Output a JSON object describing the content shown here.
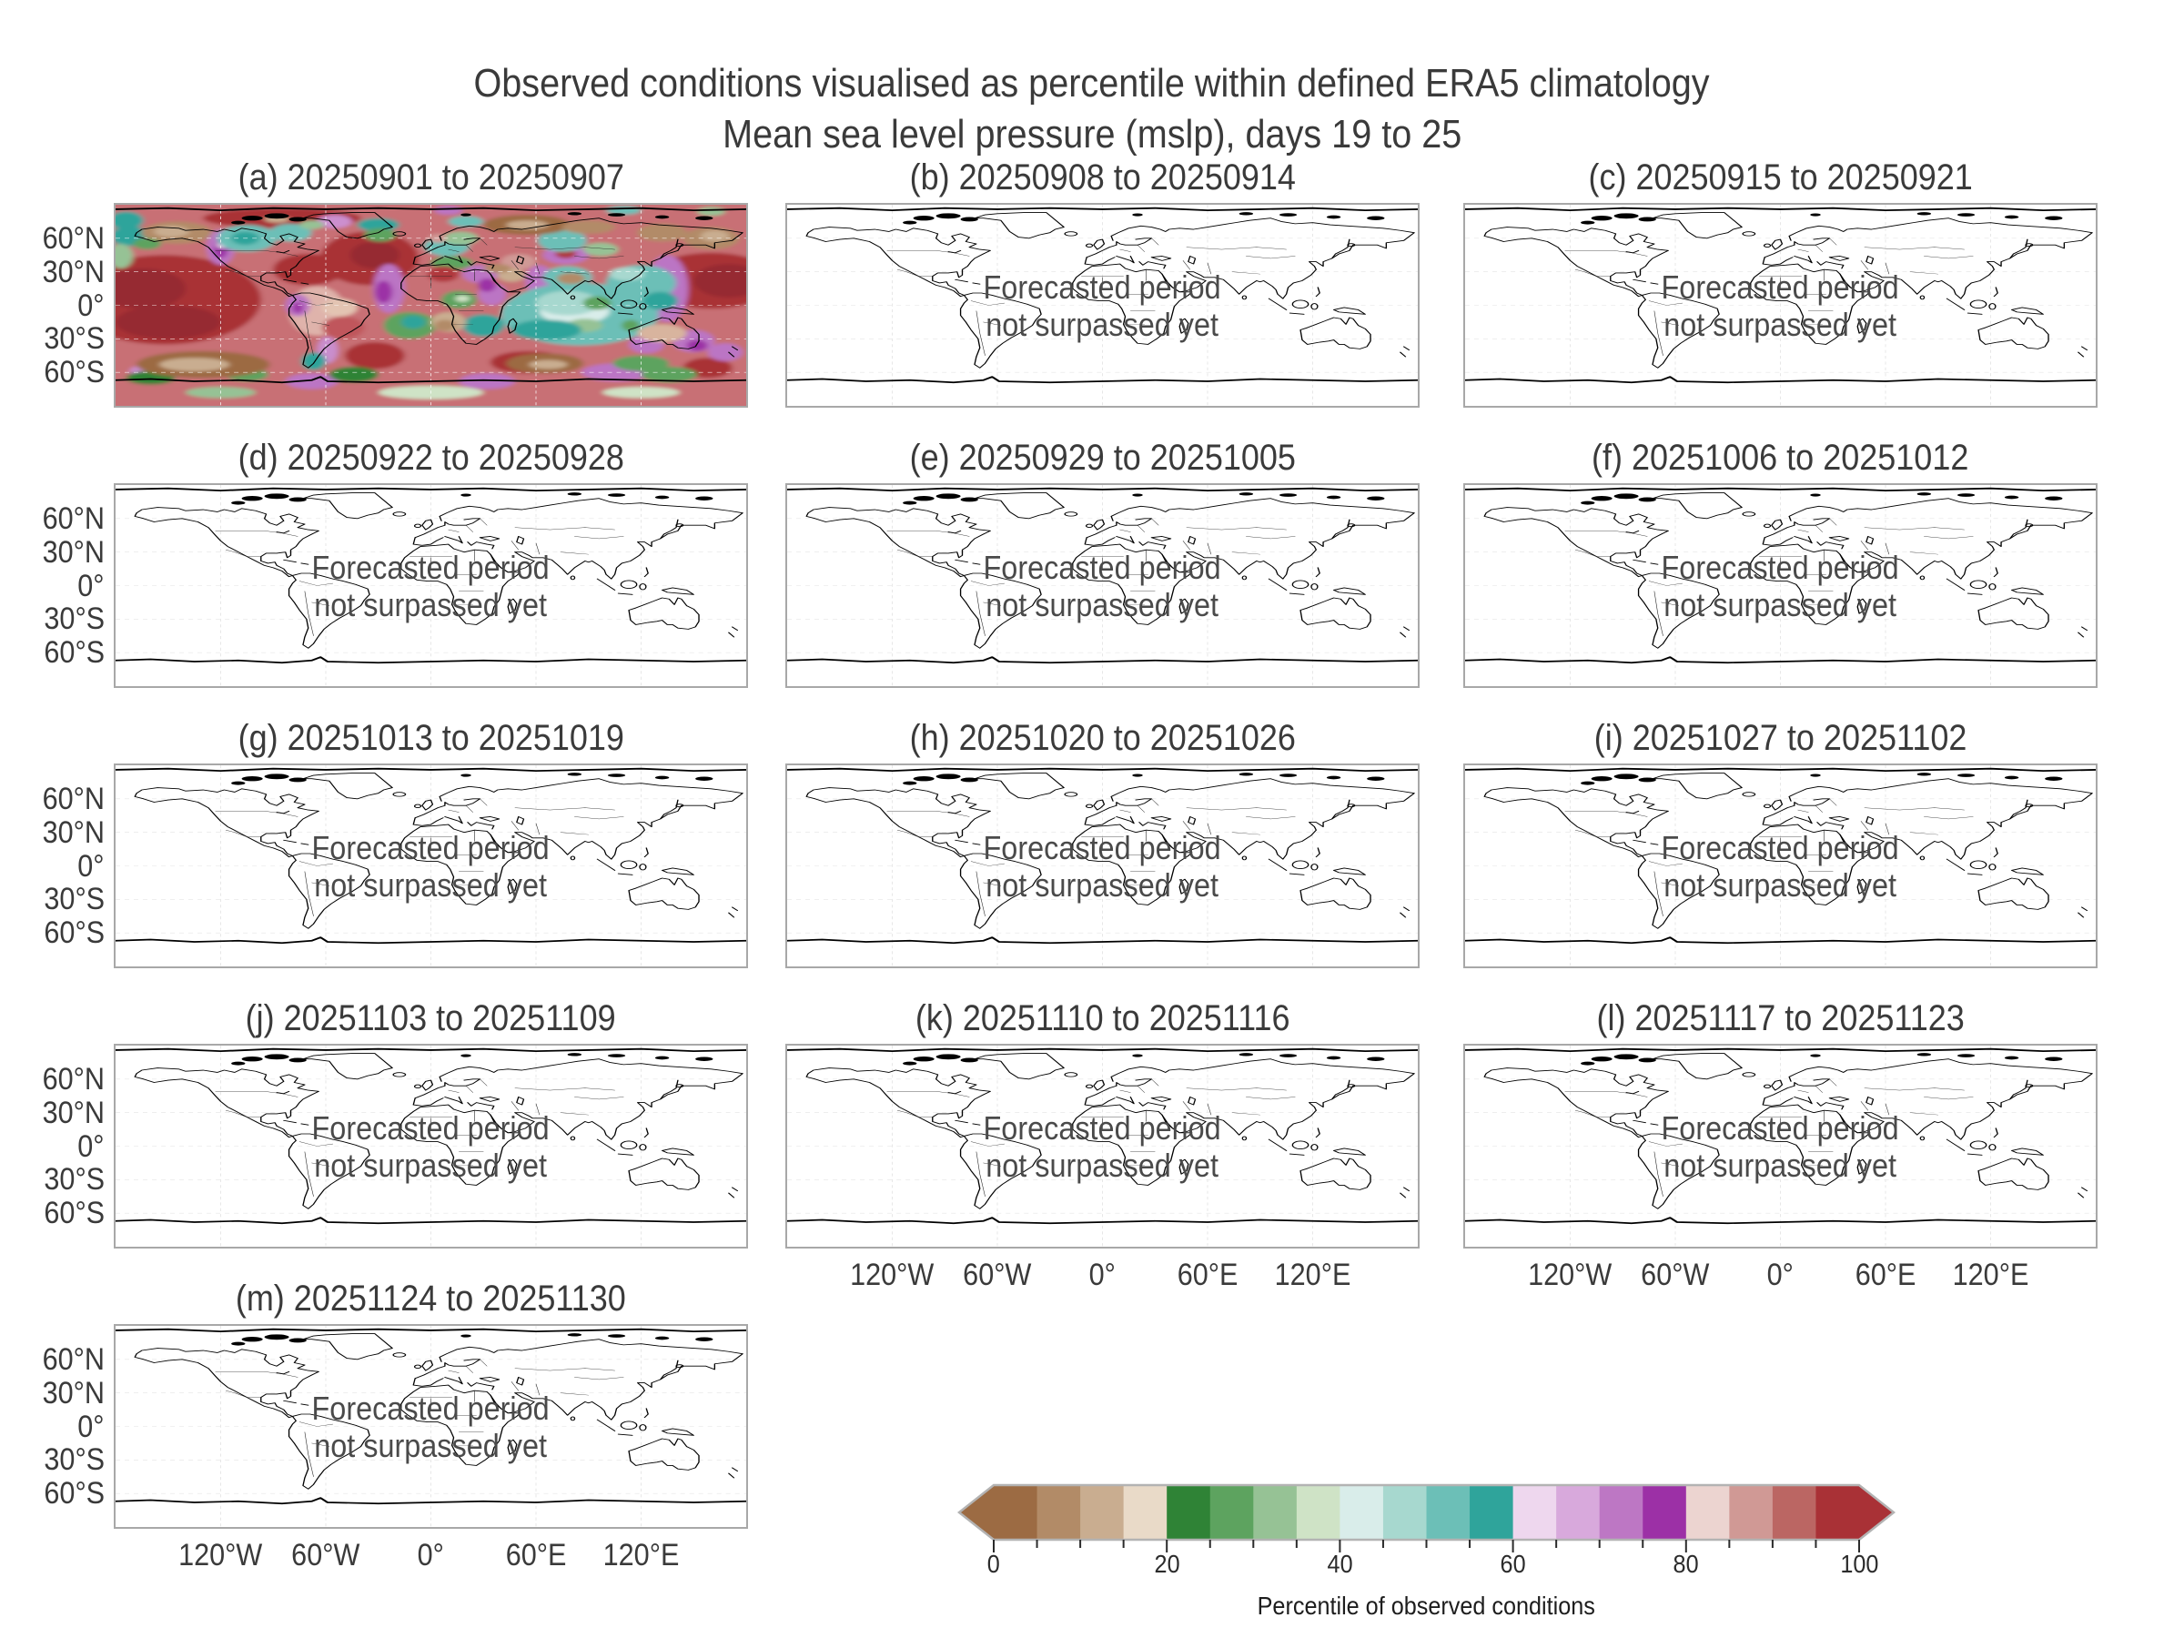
{
  "figure": {
    "title_line1": "Observed conditions visualised as percentile within defined ERA5 climatology",
    "title_line2": "Mean sea level pressure (mslp), days 19 to 25"
  },
  "note": {
    "line1": "Forecasted period",
    "line2": "not surpassed yet"
  },
  "axes": {
    "lat_ticks": [
      "60°N",
      "30°N",
      "0°",
      "30°S",
      "60°S"
    ],
    "lon_ticks": [
      "120°W",
      "60°W",
      "0°",
      "60°E",
      "120°E"
    ]
  },
  "panels": [
    {
      "id": "a",
      "title": "(a) 20250901 to 20250907",
      "type": "observed"
    },
    {
      "id": "b",
      "title": "(b) 20250908 to 20250914",
      "type": "forecast_pending"
    },
    {
      "id": "c",
      "title": "(c) 20250915 to 20250921",
      "type": "forecast_pending"
    },
    {
      "id": "d",
      "title": "(d) 20250922 to 20250928",
      "type": "forecast_pending"
    },
    {
      "id": "e",
      "title": "(e) 20250929 to 20251005",
      "type": "forecast_pending"
    },
    {
      "id": "f",
      "title": "(f) 20251006 to 20251012",
      "type": "forecast_pending"
    },
    {
      "id": "g",
      "title": "(g) 20251013 to 20251019",
      "type": "forecast_pending"
    },
    {
      "id": "h",
      "title": "(h) 20251020 to 20251026",
      "type": "forecast_pending"
    },
    {
      "id": "i",
      "title": "(i) 20251027 to 20251102",
      "type": "forecast_pending"
    },
    {
      "id": "j",
      "title": "(j) 20251103 to 20251109",
      "type": "forecast_pending"
    },
    {
      "id": "k",
      "title": "(k) 20251110 to 20251116",
      "type": "forecast_pending"
    },
    {
      "id": "l",
      "title": "(l) 20251117 to 20251123",
      "type": "forecast_pending"
    },
    {
      "id": "m",
      "title": "(m) 20251124 to 20251130",
      "type": "forecast_pending"
    }
  ],
  "colorbar": {
    "label": "Percentile of observed conditions",
    "tick_values": [
      0,
      20,
      40,
      60,
      80,
      100
    ],
    "tick_labels": [
      "0",
      "20",
      "40",
      "60",
      "80",
      "100"
    ],
    "minor_step": 5,
    "segments": [
      "#9c6b43",
      "#b28b67",
      "#c9ad90",
      "#e9dac8",
      "#2f8336",
      "#5da35f",
      "#96c295",
      "#cfe3c6",
      "#d9edea",
      "#a7d8cf",
      "#6cbfb7",
      "#2fa49b",
      "#eed7ee",
      "#d8a9dc",
      "#bd77c4",
      "#9c30a6",
      "#ecd4d0",
      "#d09995",
      "#bb6663",
      "#a93136"
    ],
    "left_arrow": "#9c6b43",
    "right_arrow": "#a93136",
    "outline_color": "#b3b3b3"
  },
  "chart_data": {
    "type": "heatmap",
    "subtype": "multi-panel global percentile maps (plate carree world maps, 3 columns x 5 rows)",
    "title": "Observed conditions visualised as percentile within defined ERA5 climatology",
    "subtitle": "Mean sea level pressure (mslp), days 19 to 25",
    "panels": [
      {
        "label": "(a)",
        "period_start": "20250901",
        "period_end": "20250907",
        "status": "observed percentile field shown"
      },
      {
        "label": "(b)",
        "period_start": "20250908",
        "period_end": "20250914",
        "status": "Forecasted period not surpassed yet"
      },
      {
        "label": "(c)",
        "period_start": "20250915",
        "period_end": "20250921",
        "status": "Forecasted period not surpassed yet"
      },
      {
        "label": "(d)",
        "period_start": "20250922",
        "period_end": "20250928",
        "status": "Forecasted period not surpassed yet"
      },
      {
        "label": "(e)",
        "period_start": "20250929",
        "period_end": "20251005",
        "status": "Forecasted period not surpassed yet"
      },
      {
        "label": "(f)",
        "period_start": "20251006",
        "period_end": "20251012",
        "status": "Forecasted period not surpassed yet"
      },
      {
        "label": "(g)",
        "period_start": "20251013",
        "period_end": "20251019",
        "status": "Forecasted period not surpassed yet"
      },
      {
        "label": "(h)",
        "period_start": "20251020",
        "period_end": "20251026",
        "status": "Forecasted period not surpassed yet"
      },
      {
        "label": "(i)",
        "period_start": "20251027",
        "period_end": "20251102",
        "status": "Forecasted period not surpassed yet"
      },
      {
        "label": "(j)",
        "period_start": "20251103",
        "period_end": "20251109",
        "status": "Forecasted period not surpassed yet"
      },
      {
        "label": "(k)",
        "period_start": "20251110",
        "period_end": "20251116",
        "status": "Forecasted period not surpassed yet"
      },
      {
        "label": "(l)",
        "period_start": "20251117",
        "period_end": "20251123",
        "status": "Forecasted period not surpassed yet"
      },
      {
        "label": "(m)",
        "period_start": "20251124",
        "period_end": "20251130",
        "status": "Forecasted period not surpassed yet"
      }
    ],
    "x_tick_labels": [
      "120°W",
      "60°W",
      "0°",
      "60°E",
      "120°E"
    ],
    "y_tick_labels": [
      "60°N",
      "30°N",
      "0°",
      "30°S",
      "60°S"
    ],
    "grid": "dashed graticule every 30 deg lat / 60 deg lon",
    "legend_position": "bottom center",
    "colorbar": {
      "label": "Percentile of observed conditions",
      "range": [
        0,
        100
      ],
      "tick_step": 20,
      "minor_tick_step": 5,
      "n_segments": 20,
      "extend": "both",
      "colors": [
        "#9c6b43",
        "#b28b67",
        "#c9ad90",
        "#e9dac8",
        "#2f8336",
        "#5da35f",
        "#96c295",
        "#cfe3c6",
        "#d9edea",
        "#a7d8cf",
        "#6cbfb7",
        "#2fa49b",
        "#eed7ee",
        "#d8a9dc",
        "#bd77c4",
        "#9c30a6",
        "#ecd4d0",
        "#d09995",
        "#bb6663",
        "#a93136"
      ]
    }
  }
}
